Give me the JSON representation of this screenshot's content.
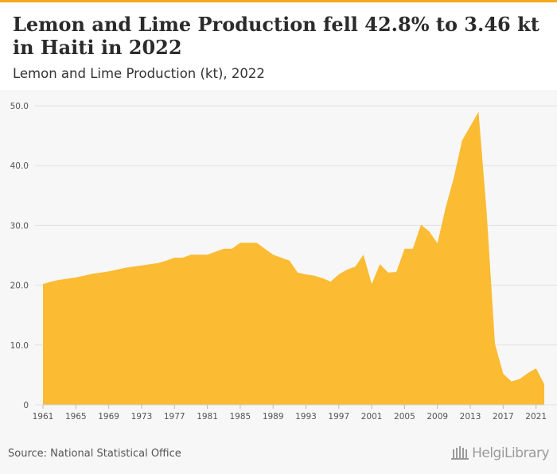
{
  "header": {
    "title": "Lemon and Lime Production fell 42.8% to 3.46 kt in Haiti in 2022",
    "subtitle": "Lemon and Lime Production (kt), 2022"
  },
  "footer": {
    "source": "Source: National Statistical Office",
    "logo": "HelgiLibrary"
  },
  "colors": {
    "area": "#fbbb33",
    "accent": "#f5a81c",
    "grid": "#e2e2e2"
  },
  "chart_data": {
    "type": "area",
    "x": [
      1961,
      1962,
      1963,
      1964,
      1965,
      1966,
      1967,
      1968,
      1969,
      1970,
      1971,
      1972,
      1973,
      1974,
      1975,
      1976,
      1977,
      1978,
      1979,
      1980,
      1981,
      1982,
      1983,
      1984,
      1985,
      1986,
      1987,
      1988,
      1989,
      1990,
      1991,
      1992,
      1993,
      1994,
      1995,
      1996,
      1997,
      1998,
      1999,
      2000,
      2001,
      2002,
      2003,
      2004,
      2005,
      2006,
      2007,
      2008,
      2009,
      2010,
      2011,
      2012,
      2013,
      2014,
      2015,
      2016,
      2017,
      2018,
      2019,
      2020,
      2021,
      2022
    ],
    "values": [
      20.2,
      20.6,
      20.9,
      21.1,
      21.3,
      21.6,
      21.9,
      22.1,
      22.3,
      22.6,
      22.9,
      23.1,
      23.3,
      23.5,
      23.7,
      24.1,
      24.6,
      24.6,
      25.1,
      25.1,
      25.1,
      25.6,
      26.1,
      26.1,
      27.1,
      27.1,
      27.1,
      26.1,
      25.1,
      24.6,
      24.1,
      22.1,
      21.8,
      21.6,
      21.2,
      20.6,
      21.8,
      22.6,
      23.1,
      25.1,
      20.2,
      23.5,
      22.1,
      22.2,
      26.1,
      26.1,
      30.1,
      29.0,
      27.0,
      33.0,
      38.0,
      44.2,
      46.6,
      49.0,
      32.0,
      10.2,
      5.2,
      3.9,
      4.3,
      5.3,
      6.1,
      3.46
    ],
    "x_ticks": [
      1961,
      1965,
      1969,
      1973,
      1977,
      1981,
      1985,
      1989,
      1993,
      1997,
      2001,
      2005,
      2009,
      2013,
      2017,
      2021
    ],
    "y_ticks": [
      "0",
      "10.0",
      "20.0",
      "30.0",
      "40.0",
      "50.0"
    ],
    "ylim": [
      0,
      50
    ],
    "grid": "horizontal"
  }
}
